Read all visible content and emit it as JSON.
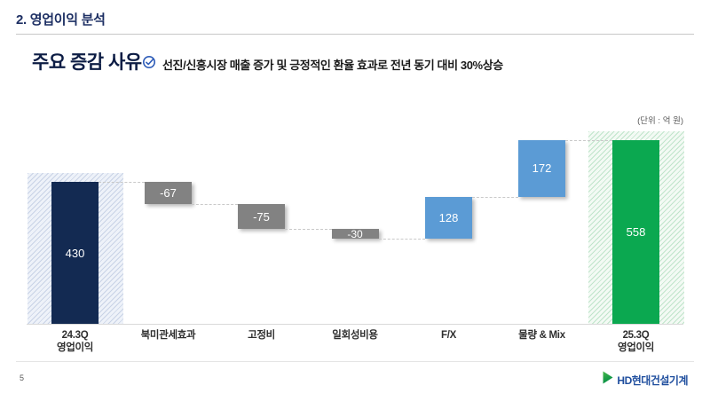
{
  "header": {
    "section_title": "2. 영업이익 분석"
  },
  "content": {
    "heading": "주요 증감 사유",
    "annotation": "선진/신흥시장 매출 증가 및 긍정적인 환율 효과로 전년 동기 대비 30%상승"
  },
  "footer": {
    "page_number": "5",
    "logo_text": "HD현대건설기계"
  },
  "colors": {
    "title_navy": "#1d2f63",
    "heading_navy": "#0c1c44",
    "check_blue": "#2d5cb8",
    "logo_blue": "#1f4e9e",
    "logo_green": "#2fa84a",
    "bar_navy": "#132a52",
    "bar_gray": "#828282",
    "bar_blue": "#5b9bd5",
    "bar_green": "#0ba850"
  },
  "chart_data": {
    "type": "bar",
    "subtype": "waterfall",
    "title": "주요 증감 사유",
    "unit_label": "(단위 : 억 원)",
    "categories": [
      "24.3Q 영업이익",
      "북미관세효과",
      "고정비",
      "일회성비용",
      "F/X",
      "물량 & Mix",
      "25.3Q 영업이익"
    ],
    "category_lines": [
      [
        "24.3Q",
        "영업이익"
      ],
      [
        "북미관세효과"
      ],
      [
        "고정비"
      ],
      [
        "일회성비용"
      ],
      [
        "F/X"
      ],
      [
        "물량 & Mix"
      ],
      [
        "25.3Q",
        "영업이익"
      ]
    ],
    "values": [
      430,
      -67,
      -75,
      -30,
      128,
      172,
      558
    ],
    "value_labels": [
      "430",
      "-67",
      "-75",
      "-30",
      "128",
      "172",
      "558"
    ],
    "bar_roles": [
      "total_start",
      "decrease",
      "decrease",
      "decrease",
      "increase",
      "increase",
      "total_end"
    ],
    "cumulative_levels": [
      430,
      363,
      288,
      258,
      386,
      558,
      558
    ],
    "baseline_value": 0,
    "ymax_hint": 600,
    "gridlines": false,
    "legend": false,
    "bar_colors": {
      "total_start": "#132a52",
      "decrease": "#828282",
      "increase": "#5b9bd5",
      "total_end": "#0ba850"
    },
    "highlight_bands": [
      {
        "index": 0,
        "tint": "blue"
      },
      {
        "index": 6,
        "tint": "green"
      }
    ]
  }
}
